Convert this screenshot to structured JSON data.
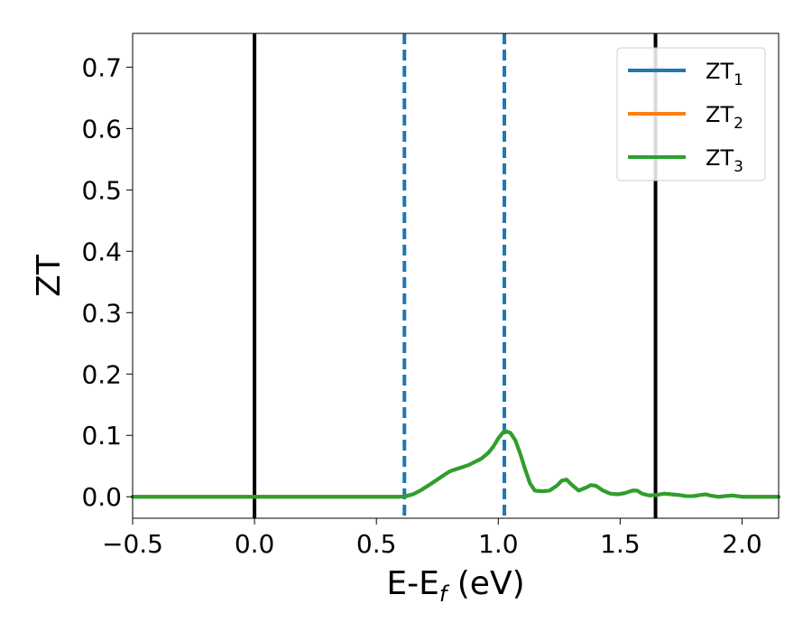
{
  "chart_data": {
    "type": "line",
    "xlabel": "E-E",
    "xlabel_subscript": "f",
    "xlabel_suffix": " (eV)",
    "ylabel": "ZT",
    "xlim": [
      -0.5,
      2.15
    ],
    "ylim": [
      -0.035,
      0.755
    ],
    "xticks": [
      -0.5,
      0.0,
      0.5,
      1.0,
      1.5,
      2.0
    ],
    "xtick_labels": [
      "−0.5",
      "0.0",
      "0.5",
      "1.0",
      "1.5",
      "2.0"
    ],
    "yticks": [
      0.0,
      0.1,
      0.2,
      0.3,
      0.4,
      0.5,
      0.6,
      0.7
    ],
    "ytick_labels": [
      "0.0",
      "0.1",
      "0.2",
      "0.3",
      "0.4",
      "0.5",
      "0.6",
      "0.7"
    ],
    "grid": false,
    "legend_position": "top-right",
    "vertical_lines": [
      {
        "x": 0.0,
        "color": "#000000",
        "style": "solid"
      },
      {
        "x": 1.645,
        "color": "#000000",
        "style": "solid"
      },
      {
        "x": 0.615,
        "color": "#1f77b4",
        "style": "dashed"
      },
      {
        "x": 1.025,
        "color": "#1f77b4",
        "style": "dashed"
      }
    ],
    "x": [
      -0.5,
      0.0,
      0.5,
      0.6,
      0.62,
      0.65,
      0.68,
      0.7,
      0.72,
      0.75,
      0.78,
      0.8,
      0.82,
      0.85,
      0.88,
      0.9,
      0.93,
      0.96,
      0.98,
      1.0,
      1.02,
      1.03,
      1.05,
      1.07,
      1.09,
      1.11,
      1.13,
      1.15,
      1.18,
      1.21,
      1.24,
      1.26,
      1.28,
      1.3,
      1.33,
      1.36,
      1.38,
      1.4,
      1.43,
      1.46,
      1.49,
      1.52,
      1.55,
      1.57,
      1.59,
      1.62,
      1.65,
      1.68,
      1.71,
      1.74,
      1.77,
      1.8,
      1.83,
      1.85,
      1.87,
      1.9,
      1.93,
      1.96,
      1.98,
      2.0,
      2.05,
      2.1,
      2.15
    ],
    "series": [
      {
        "name": "ZT$_1$",
        "label": "ZT",
        "sub": "1",
        "color": "#1f77b4",
        "values": null
      },
      {
        "name": "ZT$_2$",
        "label": "ZT",
        "sub": "2",
        "color": "#ff7f0e",
        "values": null
      },
      {
        "name": "ZT$_3$",
        "label": "ZT",
        "sub": "3",
        "color": "#2ca02c",
        "values": null
      }
    ],
    "y": [
      0.0,
      0.0,
      0.0,
      0.0,
      0.001,
      0.004,
      0.01,
      0.015,
      0.02,
      0.028,
      0.036,
      0.041,
      0.044,
      0.048,
      0.052,
      0.056,
      0.062,
      0.072,
      0.082,
      0.095,
      0.105,
      0.107,
      0.104,
      0.092,
      0.07,
      0.045,
      0.022,
      0.01,
      0.009,
      0.01,
      0.018,
      0.026,
      0.028,
      0.02,
      0.01,
      0.015,
      0.019,
      0.018,
      0.01,
      0.005,
      0.004,
      0.006,
      0.01,
      0.01,
      0.005,
      0.002,
      0.003,
      0.005,
      0.004,
      0.003,
      0.001,
      0.001,
      0.003,
      0.004,
      0.002,
      0.0,
      0.001,
      0.002,
      0.001,
      0.0,
      0.0,
      0.0,
      0.0
    ]
  }
}
